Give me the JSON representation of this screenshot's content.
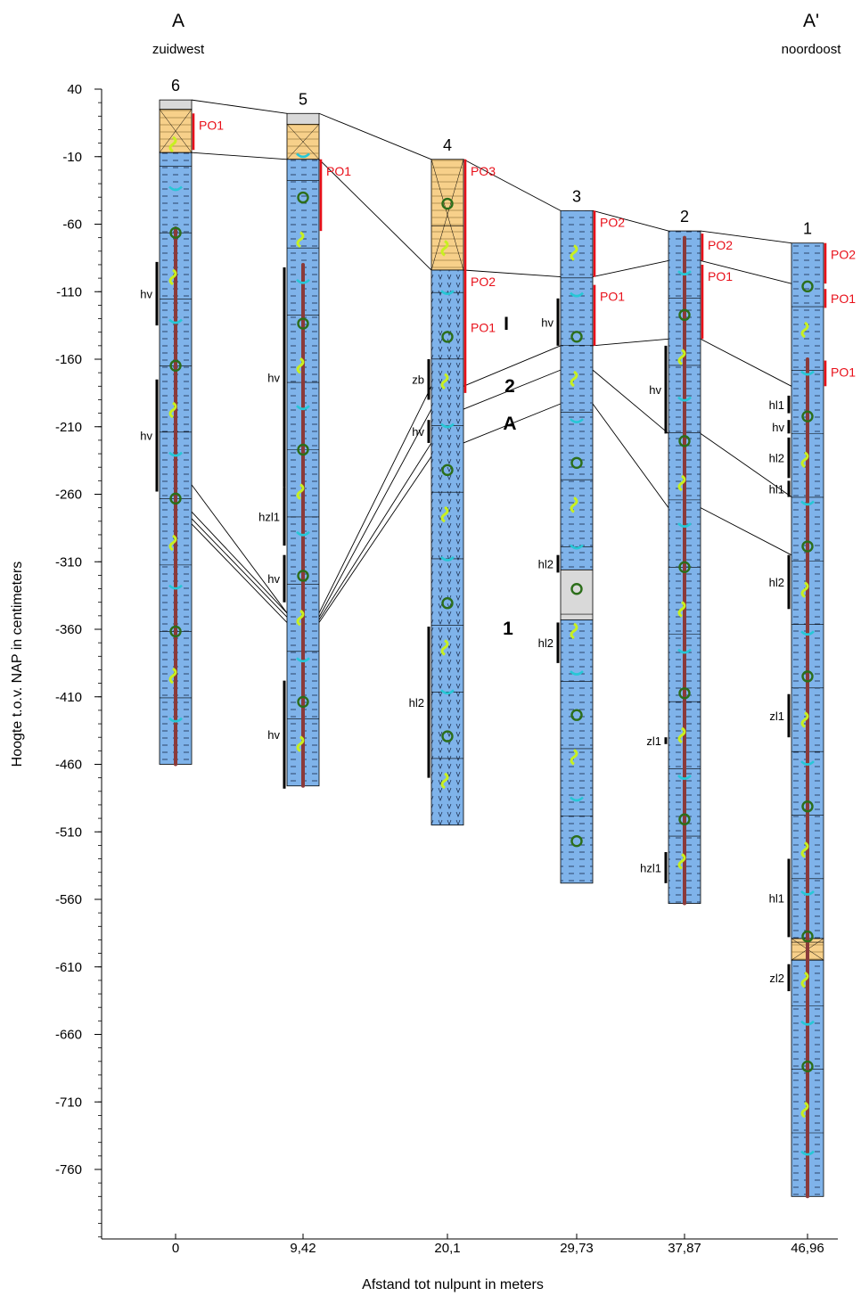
{
  "header": {
    "left_label": "A",
    "left_direction": "zuidwest",
    "right_label": "A'",
    "right_direction": "noordoost"
  },
  "y_axis": {
    "title": "Hoogte t.o.v. NAP in centimeters",
    "ticks": [
      40,
      -10,
      -60,
      -110,
      -160,
      -210,
      -260,
      -310,
      -360,
      -410,
      -460,
      -510,
      -560,
      -610,
      -660,
      -710,
      -760
    ],
    "minor_step": 10,
    "range": [
      -830,
      40
    ]
  },
  "x_axis": {
    "title": "Afstand tot nulpunt in meters",
    "ticks": [
      "0",
      "9,42",
      "20,1",
      "29,73",
      "37,87",
      "46,96"
    ]
  },
  "colors": {
    "clay": "#7fb3ea",
    "peat_top": "#f7d08a",
    "missing": "#d9d9d9",
    "peat_marker": "#e8101a",
    "root_core": "#8b3a3a",
    "snail_yellow": "#c8f020",
    "snail_dark": "#2c6e1a",
    "mussel_cyan": "#27c7d6"
  },
  "boreholes": [
    {
      "number": "6",
      "distance": 0,
      "top": 32,
      "bottom": -460,
      "units": [
        {
          "from": 32,
          "to": 25,
          "kind": "missing"
        },
        {
          "from": 25,
          "to": -7,
          "kind": "peat"
        },
        {
          "from": -7,
          "to": -460,
          "kind": "clay"
        }
      ],
      "po": [
        {
          "label": "PO1",
          "from": 22,
          "to": -5
        }
      ],
      "sandlayers": [
        {
          "label": "hv",
          "from": -88,
          "to": -135
        },
        {
          "label": "hv",
          "from": -175,
          "to": -258
        }
      ],
      "core_from": -63,
      "core_to": -460
    },
    {
      "number": "5",
      "distance": 9.42,
      "top": 22,
      "bottom": -476,
      "units": [
        {
          "from": 22,
          "to": 14,
          "kind": "missing"
        },
        {
          "from": 14,
          "to": -12,
          "kind": "peat"
        },
        {
          "from": -12,
          "to": -476,
          "kind": "clay"
        }
      ],
      "po": [
        {
          "label": "PO1",
          "from": -12,
          "to": -65
        }
      ],
      "sandlayers": [
        {
          "label": "hv",
          "from": -92,
          "to": -255
        },
        {
          "label": "hzl1",
          "from": -255,
          "to": -298
        },
        {
          "label": "hv",
          "from": -305,
          "to": -340
        },
        {
          "label": "hv",
          "from": -398,
          "to": -478
        }
      ],
      "core_from": -90,
      "core_to": -476
    },
    {
      "number": "4",
      "distance": 20.1,
      "top": -12,
      "bottom": -505,
      "units": [
        {
          "from": -12,
          "to": -94,
          "kind": "peat"
        },
        {
          "from": -94,
          "to": -505,
          "kind": "clay"
        }
      ],
      "po": [
        {
          "label": "PO3",
          "from": -12,
          "to": -94
        },
        {
          "label": "PO2",
          "from": -94,
          "to": -128
        },
        {
          "label": "PO1",
          "from": -128,
          "to": -185
        }
      ],
      "sandlayers": [
        {
          "label": "zb",
          "from": -160,
          "to": -190
        },
        {
          "label": "hv",
          "from": -205,
          "to": -222
        },
        {
          "label": "hl2",
          "from": -358,
          "to": -470
        }
      ],
      "core_from": 0,
      "core_to": 0
    },
    {
      "number": "3",
      "distance": 29.73,
      "top": -50,
      "bottom": -548,
      "units": [
        {
          "from": -50,
          "to": -316,
          "kind": "clay"
        },
        {
          "from": -316,
          "to": -353,
          "kind": "missing"
        },
        {
          "from": -353,
          "to": -548,
          "kind": "clay"
        }
      ],
      "po": [
        {
          "label": "PO2",
          "from": -50,
          "to": -99
        },
        {
          "label": "PO1",
          "from": -105,
          "to": -150
        }
      ],
      "sandlayers": [
        {
          "label": "hv",
          "from": -115,
          "to": -150
        },
        {
          "label": "hl2",
          "from": -305,
          "to": -318
        },
        {
          "label": "hl2",
          "from": -355,
          "to": -385
        }
      ],
      "core_from": 0,
      "core_to": 0
    },
    {
      "number": "2",
      "distance": 37.87,
      "top": -65,
      "bottom": -563,
      "units": [
        {
          "from": -65,
          "to": -563,
          "kind": "clay"
        }
      ],
      "po": [
        {
          "label": "PO2",
          "from": -67,
          "to": -87
        },
        {
          "label": "PO1",
          "from": -90,
          "to": -145
        }
      ],
      "sandlayers": [
        {
          "label": "hv",
          "from": -150,
          "to": -215
        },
        {
          "label": "zl1",
          "from": -440,
          "to": -445
        },
        {
          "label": "hzl1",
          "from": -525,
          "to": -548
        }
      ],
      "core_from": -70,
      "core_to": -563
    },
    {
      "number": "1",
      "distance": 46.96,
      "top": -74,
      "bottom": -780,
      "units": [
        {
          "from": -74,
          "to": -589,
          "kind": "clay"
        },
        {
          "from": -589,
          "to": -605,
          "kind": "peat"
        },
        {
          "from": -605,
          "to": -780,
          "kind": "clay"
        }
      ],
      "po": [
        {
          "label": "PO2",
          "from": -74,
          "to": -104
        },
        {
          "label": "PO1",
          "from": -108,
          "to": -122
        },
        {
          "label": "PO1",
          "from": -161,
          "to": -180
        }
      ],
      "sandlayers": [
        {
          "label": "hl1",
          "from": -187,
          "to": -200
        },
        {
          "label": "hv",
          "from": -205,
          "to": -215
        },
        {
          "label": "hl2",
          "from": -218,
          "to": -248
        },
        {
          "label": "hl1",
          "from": -250,
          "to": -262
        },
        {
          "label": "hl2",
          "from": -305,
          "to": -345
        },
        {
          "label": "zl1",
          "from": -408,
          "to": -440
        },
        {
          "label": "hl1",
          "from": -530,
          "to": -588
        },
        {
          "label": "zl2",
          "from": -608,
          "to": -628
        }
      ],
      "core_from": -160,
      "core_to": -780
    }
  ],
  "correlation_labels": [
    {
      "label": "I",
      "kind": "bold"
    },
    {
      "label": "2",
      "kind": "bold"
    },
    {
      "label": "A",
      "kind": "bold"
    },
    {
      "label": "1",
      "kind": "bold"
    }
  ]
}
